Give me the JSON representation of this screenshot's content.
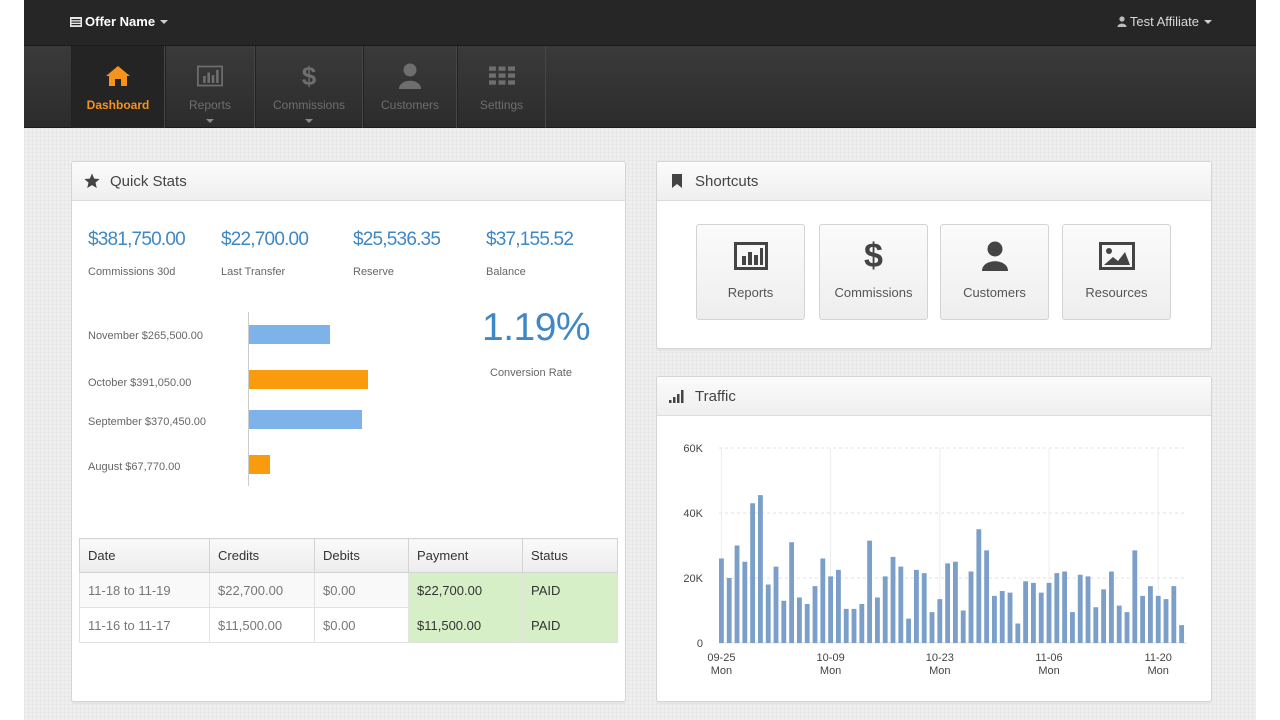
{
  "topbar": {
    "offer_label": "Offer Name",
    "user_label": "Test Affiliate"
  },
  "nav": {
    "items": [
      {
        "label": "Dashboard",
        "icon": "home-icon",
        "active": true
      },
      {
        "label": "Reports",
        "icon": "bar-chart-icon",
        "dropdown": true
      },
      {
        "label": "Commissions",
        "icon": "dollar-icon",
        "dropdown": true
      },
      {
        "label": "Customers",
        "icon": "user-icon"
      },
      {
        "label": "Settings",
        "icon": "grid-icon"
      }
    ]
  },
  "quick_stats": {
    "title": "Quick Stats",
    "stats": [
      {
        "value": "$381,750.00",
        "label": "Commissions 30d"
      },
      {
        "value": "$22,700.00",
        "label": "Last Transfer"
      },
      {
        "value": "$25,536.35",
        "label": "Reserve"
      },
      {
        "value": "$37,155.52",
        "label": "Balance"
      }
    ],
    "bars": [
      {
        "label": "November $265,500.00",
        "value": 265500,
        "color": "#7db3e8"
      },
      {
        "label": "October $391,050.00",
        "value": 391050,
        "color": "#f99b0c"
      },
      {
        "label": "September $370,450.00",
        "value": 370450,
        "color": "#7db3e8"
      },
      {
        "label": "August $67,770.00",
        "value": 67770,
        "color": "#f99b0c"
      }
    ],
    "conversion_rate": "1.19%",
    "conversion_label": "Conversion Rate",
    "table": {
      "headers": [
        "Date",
        "Credits",
        "Debits",
        "Payment",
        "Status"
      ],
      "rows": [
        [
          "11-18 to 11-19",
          "$22,700.00",
          "$0.00",
          "$22,700.00",
          "PAID"
        ],
        [
          "11-16 to 11-17",
          "$11,500.00",
          "$0.00",
          "$11,500.00",
          "PAID"
        ]
      ]
    }
  },
  "shortcuts": {
    "title": "Shortcuts",
    "items": [
      {
        "label": "Reports",
        "icon": "bar-chart-icon"
      },
      {
        "label": "Commissions",
        "icon": "dollar-icon"
      },
      {
        "label": "Customers",
        "icon": "user-icon"
      },
      {
        "label": "Resources",
        "icon": "image-icon"
      }
    ]
  },
  "traffic": {
    "title": "Traffic"
  },
  "colors": {
    "accent_orange": "#f6921e",
    "stat_blue": "#3f88c5",
    "bar_blue": "#7db3e8",
    "bar_orange": "#f99b0c",
    "traffic_bar": "#7b9fc8",
    "paid_green": "#d7efc6"
  },
  "chart_data": {
    "type": "bar",
    "title": "Traffic",
    "ylim": [
      0,
      60000
    ],
    "y_ticks": [
      "0",
      "20K",
      "40K",
      "60K"
    ],
    "x_ticks": [
      {
        "index": 0,
        "date": "09-25",
        "day": "Mon"
      },
      {
        "index": 14,
        "date": "10-09",
        "day": "Mon"
      },
      {
        "index": 28,
        "date": "10-23",
        "day": "Mon"
      },
      {
        "index": 42,
        "date": "11-06",
        "day": "Mon"
      },
      {
        "index": 56,
        "date": "11-20",
        "day": "Mon"
      }
    ],
    "x_start": "09-25",
    "grid": true,
    "values": [
      26000,
      20000,
      30000,
      25000,
      43000,
      45500,
      18000,
      23500,
      13000,
      31000,
      14000,
      12000,
      17500,
      26000,
      20500,
      22500,
      10500,
      10500,
      12000,
      31500,
      14000,
      20500,
      26500,
      23500,
      7500,
      22500,
      21500,
      9500,
      13500,
      24500,
      25000,
      10000,
      22000,
      35000,
      28500,
      14500,
      16000,
      15500,
      6000,
      19000,
      18500,
      15500,
      18500,
      21500,
      22000,
      9500,
      21000,
      20500,
      11000,
      16500,
      22000,
      11500,
      9500,
      28500,
      14500,
      17500,
      14500,
      13500,
      17500,
      5500
    ]
  }
}
